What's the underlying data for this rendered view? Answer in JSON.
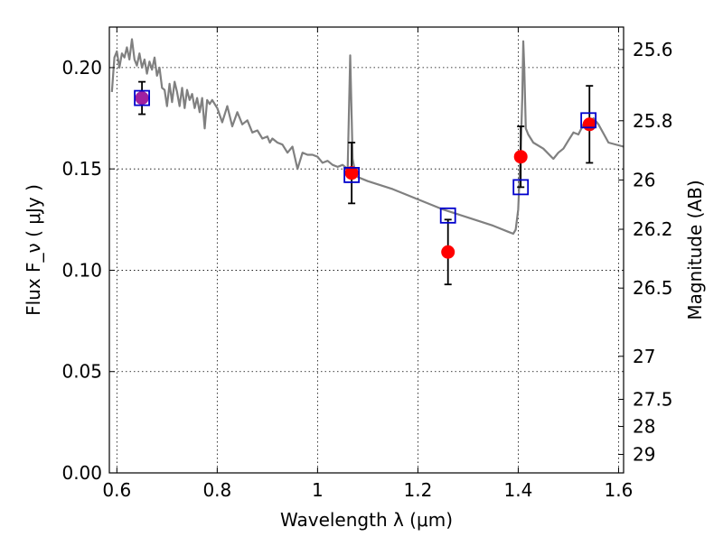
{
  "chart_data": {
    "type": "line",
    "title": "",
    "xlabel": "Wavelength  λ (μm)",
    "ylabel": "Flux  F_ν  ( μJy )",
    "y2label": "Magnitude (AB)",
    "xlim": [
      0.585,
      1.61
    ],
    "ylim": [
      0.0,
      0.22
    ],
    "grid": true,
    "x_ticks": [
      0.6,
      0.8,
      1.0,
      1.2,
      1.4,
      1.6
    ],
    "x_tick_labels": [
      "0.6",
      "0.8",
      "1",
      "1.2",
      "1.4",
      "1.6"
    ],
    "y_ticks": [
      0.0,
      0.05,
      0.1,
      0.15,
      0.2
    ],
    "y_tick_labels": [
      "0.00",
      "0.05",
      "0.10",
      "0.15",
      "0.20"
    ],
    "magnitude_ticks": [
      {
        "label": "25.6",
        "mag": 25.6
      },
      {
        "label": "25.8",
        "mag": 25.8
      },
      {
        "label": "26",
        "mag": 26.0
      },
      {
        "label": "26.2",
        "mag": 26.2
      },
      {
        "label": "26.5",
        "mag": 26.5
      },
      {
        "label": "27",
        "mag": 27.0
      },
      {
        "label": "27.5",
        "mag": 27.5
      },
      {
        "label": "28",
        "mag": 28.0
      },
      {
        "label": "29",
        "mag": 29.0
      }
    ],
    "series": [
      {
        "kind": "model_spectrum",
        "color": "#808080",
        "x": [
          0.59,
          0.595,
          0.6,
          0.605,
          0.61,
          0.615,
          0.62,
          0.625,
          0.63,
          0.635,
          0.64,
          0.645,
          0.65,
          0.655,
          0.66,
          0.665,
          0.67,
          0.675,
          0.68,
          0.685,
          0.69,
          0.695,
          0.7,
          0.705,
          0.71,
          0.715,
          0.72,
          0.725,
          0.73,
          0.735,
          0.74,
          0.745,
          0.75,
          0.755,
          0.76,
          0.765,
          0.77,
          0.775,
          0.78,
          0.785,
          0.79,
          0.8,
          0.81,
          0.82,
          0.83,
          0.84,
          0.85,
          0.86,
          0.87,
          0.88,
          0.89,
          0.9,
          0.905,
          0.91,
          0.92,
          0.93,
          0.94,
          0.95,
          0.96,
          0.97,
          0.98,
          0.99,
          1.0,
          1.01,
          1.02,
          1.03,
          1.04,
          1.05,
          1.06,
          1.065,
          1.07,
          1.075,
          1.08,
          1.1,
          1.15,
          1.2,
          1.25,
          1.3,
          1.35,
          1.38,
          1.39,
          1.395,
          1.4,
          1.405,
          1.408,
          1.41,
          1.412,
          1.415,
          1.42,
          1.43,
          1.45,
          1.47,
          1.48,
          1.49,
          1.5,
          1.51,
          1.52,
          1.53,
          1.54,
          1.55,
          1.56,
          1.58,
          1.61
        ],
        "values": [
          0.188,
          0.205,
          0.208,
          0.2,
          0.207,
          0.205,
          0.21,
          0.204,
          0.214,
          0.204,
          0.201,
          0.207,
          0.2,
          0.204,
          0.197,
          0.203,
          0.199,
          0.205,
          0.196,
          0.2,
          0.19,
          0.189,
          0.181,
          0.192,
          0.183,
          0.193,
          0.188,
          0.181,
          0.19,
          0.18,
          0.189,
          0.184,
          0.187,
          0.18,
          0.185,
          0.178,
          0.185,
          0.17,
          0.184,
          0.182,
          0.184,
          0.18,
          0.173,
          0.181,
          0.171,
          0.178,
          0.172,
          0.174,
          0.168,
          0.169,
          0.165,
          0.166,
          0.163,
          0.165,
          0.163,
          0.162,
          0.158,
          0.161,
          0.15,
          0.158,
          0.157,
          0.157,
          0.156,
          0.153,
          0.154,
          0.152,
          0.151,
          0.152,
          0.15,
          0.206,
          0.155,
          0.148,
          0.146,
          0.144,
          0.14,
          0.135,
          0.13,
          0.126,
          0.122,
          0.119,
          0.118,
          0.12,
          0.13,
          0.16,
          0.185,
          0.213,
          0.2,
          0.17,
          0.167,
          0.163,
          0.16,
          0.155,
          0.158,
          0.16,
          0.164,
          0.168,
          0.167,
          0.172,
          0.17,
          0.175,
          0.172,
          0.163,
          0.161
        ]
      },
      {
        "kind": "model_points",
        "color": "#0000cc",
        "marker": "open-square",
        "x": [
          0.65,
          1.068,
          1.26,
          1.405,
          1.54
        ],
        "values": [
          0.185,
          0.147,
          0.127,
          0.141,
          0.174
        ]
      },
      {
        "kind": "observed_points",
        "color": "#ff0000",
        "marker": "filled-circle",
        "x": [
          0.65,
          1.068,
          1.26,
          1.405,
          1.542
        ],
        "values": [
          0.185,
          0.148,
          0.109,
          0.156,
          0.172
        ],
        "errors": [
          0.008,
          0.015,
          0.016,
          0.015,
          0.019
        ],
        "point_colors": [
          "#a020a0",
          "#ff0000",
          "#ff0000",
          "#ff0000",
          "#ff0000"
        ]
      }
    ]
  }
}
